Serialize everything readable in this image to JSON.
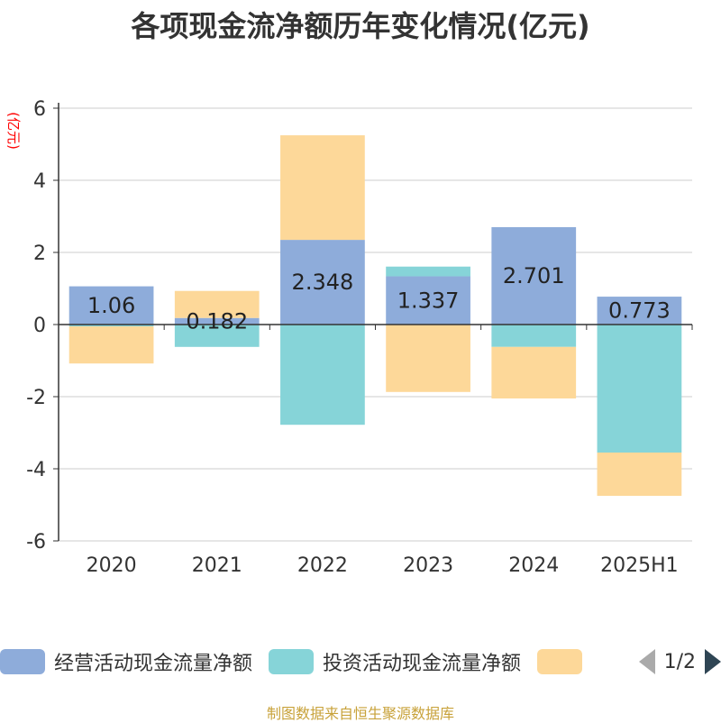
{
  "chart_data": {
    "type": "bar",
    "stacked": true,
    "title": "各项现金流净额历年变化情况(亿元)",
    "ylabel": "(亿元)",
    "categories": [
      "2020",
      "2021",
      "2022",
      "2023",
      "2024",
      "2025H1"
    ],
    "ylim": [
      -6,
      6
    ],
    "yticks": [
      6,
      4,
      2,
      0,
      -2,
      -4,
      -6
    ],
    "grid": true,
    "series": [
      {
        "name": "经营活动现金流量净额",
        "color": "#8eacda",
        "values": [
          1.06,
          0.182,
          2.348,
          1.337,
          2.701,
          0.773
        ],
        "labels": [
          "1.06",
          "0.182",
          "2.348",
          "1.337",
          "2.701",
          "0.773"
        ]
      },
      {
        "name": "投资活动现金流量净额",
        "color": "#86d4d8",
        "values": [
          -0.05,
          -0.62,
          -2.78,
          0.27,
          -0.62,
          -3.55
        ]
      },
      {
        "name": "",
        "color": "#fdd899",
        "values": [
          -1.03,
          0.75,
          2.9,
          -1.87,
          -1.43,
          -1.2
        ]
      }
    ],
    "legend": {
      "position": "bottom",
      "page": "1/2"
    }
  },
  "source_note": "制图数据来自恒生聚源数据库"
}
